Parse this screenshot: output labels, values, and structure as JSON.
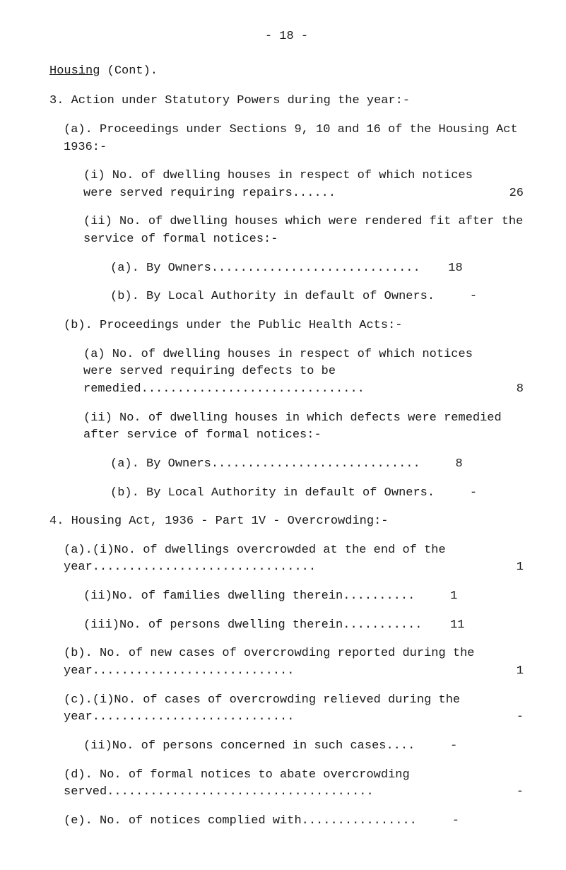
{
  "pageNumber": "- 18 -",
  "heading": "Housing",
  "headingSuffix": " (Cont).",
  "line3": "3. Action under Statutory Powers during the year:-",
  "lineA": "(a). Proceedings under Sections 9, 10 and 16 of the Housing Act 1936:-",
  "item_a_i": "(i) No. of dwelling houses in respect of which notices were served requiring repairs......",
  "val_a_i": "26",
  "item_a_ii_head": "(ii) No. of dwelling houses which were rendered fit after the service of formal notices:-",
  "item_a_ii_a": "(a). By Owners.............................",
  "val_a_ii_a": "18",
  "item_a_ii_b": "(b). By Local Authority in default of Owners.",
  "val_a_ii_b": "-",
  "lineB": "(b). Proceedings under the Public Health Acts:-",
  "item_b_a": "(a) No. of dwelling houses in respect of which notices were served requiring defects to be remedied...............................",
  "val_b_a": "8",
  "item_b_ii_head": "(ii) No. of dwelling houses in which defects were remedied after service of formal notices:-",
  "item_b_ii_a": "(a). By Owners.............................",
  "val_b_ii_a": "8",
  "item_b_ii_b": "(b). By Local Authority in default of Owners.",
  "val_b_ii_b": "-",
  "line4": "4. Housing Act, 1936 - Part 1V - Overcrowding:-",
  "item4_a_i": "(a).(i)No. of dwellings overcrowded at the end of the year...............................",
  "val4_a_i": "1",
  "item4_a_ii": "(ii)No. of families dwelling therein..........",
  "val4_a_ii": "1",
  "item4_a_iii": "(iii)No. of persons dwelling therein...........",
  "val4_a_iii": "11",
  "item4_b": "(b). No. of new cases of overcrowding reported during the year............................",
  "val4_b": "1",
  "item4_c_i": "(c).(i)No. of cases of overcrowding relieved during the year............................",
  "val4_c_i": "-",
  "item4_c_ii": "(ii)No. of persons concerned in such cases....",
  "val4_c_ii": "-",
  "item4_d": "(d). No. of formal notices to abate overcrowding served.....................................",
  "val4_d": "-",
  "item4_e": "(e). No. of notices complied with................",
  "val4_e": "-"
}
